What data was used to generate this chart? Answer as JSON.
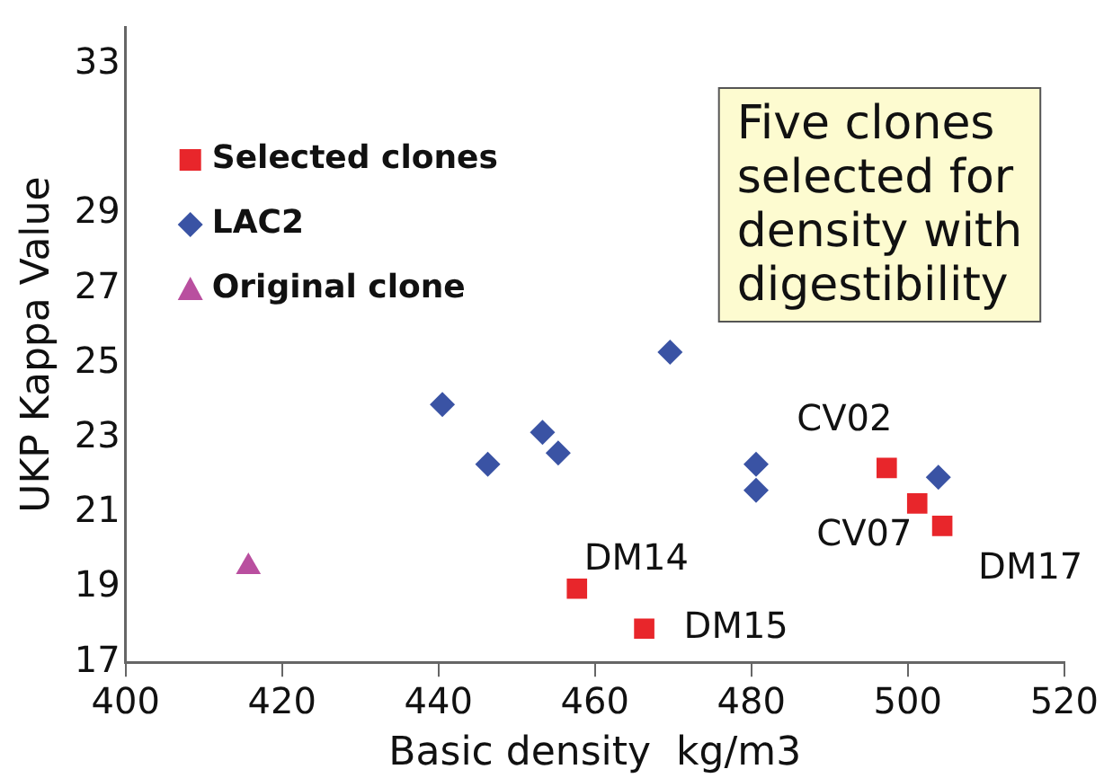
{
  "chart_data": {
    "type": "scatter",
    "xlabel": "Basic density  kg/m3",
    "ylabel": "UKP Kappa Value",
    "xlim": [
      400,
      520
    ],
    "xticks": [
      400,
      420,
      440,
      460,
      480,
      500,
      520
    ],
    "ylim": [
      17,
      34
    ],
    "yticks": [
      17,
      19,
      21,
      23,
      25,
      27,
      29,
      33
    ],
    "grid": false,
    "legend": "top left",
    "series": [
      {
        "name": "Selected clones",
        "color": "#e8262b",
        "marker": "square",
        "x": [
          497.3,
          501.2,
          504.4,
          457.7,
          466.3
        ],
        "values": [
          22.2,
          21.25,
          20.65,
          18.97,
          17.9
        ]
      },
      {
        "name": "LAC2",
        "color": "#3a53a4",
        "marker": "diamond",
        "x": [
          469.6,
          440.5,
          446.3,
          453.3,
          455.3,
          480.6,
          480.6,
          503.9
        ],
        "values": [
          25.3,
          23.9,
          22.3,
          23.15,
          22.6,
          22.3,
          21.6,
          21.95
        ]
      },
      {
        "name": "Original clone",
        "color": "#b94f9f",
        "marker": "triangle",
        "x": [
          415.7
        ],
        "values": [
          19.55
        ]
      }
    ],
    "annotations": [
      {
        "text": "CV02",
        "x": 497.3,
        "y": 22.2
      },
      {
        "text": "CV07",
        "x": 501.2,
        "y": 21.25
      },
      {
        "text": "DM17",
        "x": 504.4,
        "y": 20.65
      },
      {
        "text": "DM14",
        "x": 457.7,
        "y": 18.97
      },
      {
        "text": "DM15",
        "x": 466.3,
        "y": 17.9
      },
      "Five clones\nselected for\ndensity with\ndigestibility"
    ]
  }
}
